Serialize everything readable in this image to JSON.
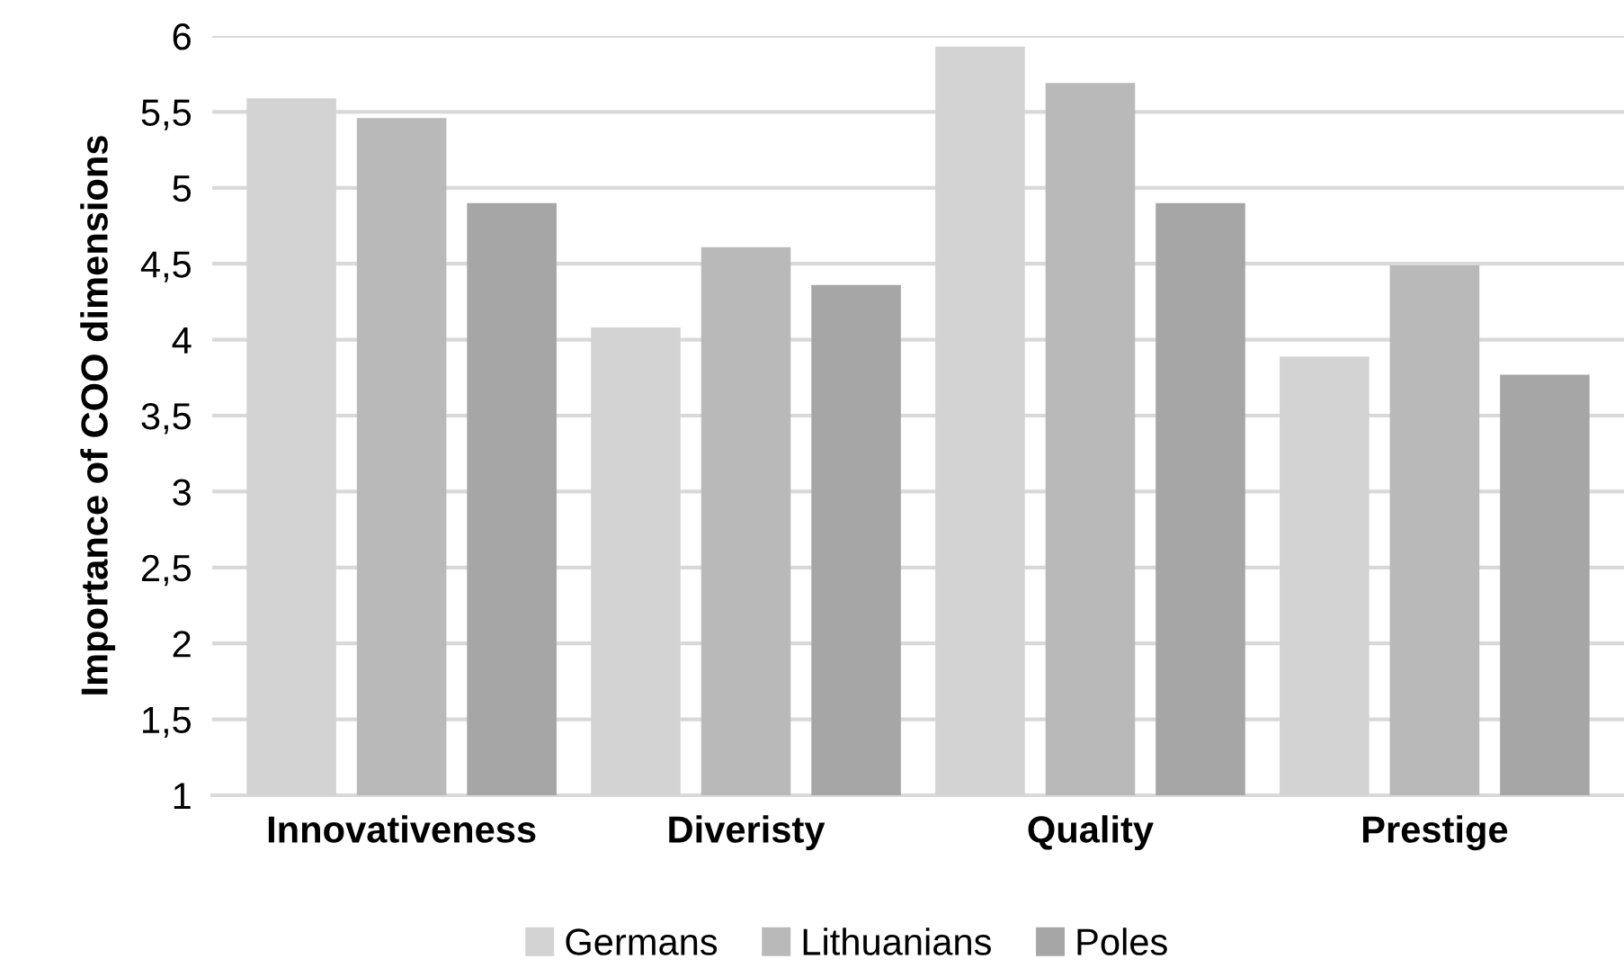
{
  "chart_data": {
    "type": "bar",
    "ylabel": "Importance of COO dimensions",
    "categories": [
      "Innovativeness",
      "Diveristy",
      "Quality",
      "Prestige"
    ],
    "series": [
      {
        "name": "Germans",
        "color": "#d3d3d3",
        "values": [
          5.59,
          4.08,
          5.93,
          3.89
        ]
      },
      {
        "name": "Lithuanians",
        "color": "#b9b9b9",
        "values": [
          5.46,
          4.61,
          5.69,
          4.49
        ]
      },
      {
        "name": "Poles",
        "color": "#a6a6a6",
        "values": [
          4.9,
          4.36,
          4.9,
          3.77
        ]
      }
    ],
    "ylim": [
      1,
      6
    ],
    "yticks": [
      {
        "value": 1,
        "label": "1"
      },
      {
        "value": 1.5,
        "label": "1,5"
      },
      {
        "value": 2,
        "label": "2"
      },
      {
        "value": 2.5,
        "label": "2,5"
      },
      {
        "value": 3,
        "label": "3"
      },
      {
        "value": 3.5,
        "label": "3,5"
      },
      {
        "value": 4,
        "label": "4"
      },
      {
        "value": 4.5,
        "label": "4,5"
      },
      {
        "value": 5,
        "label": "5"
      },
      {
        "value": 5.5,
        "label": "5,5"
      },
      {
        "value": 6,
        "label": "6"
      }
    ],
    "grid": "y",
    "legend": "bottom"
  }
}
